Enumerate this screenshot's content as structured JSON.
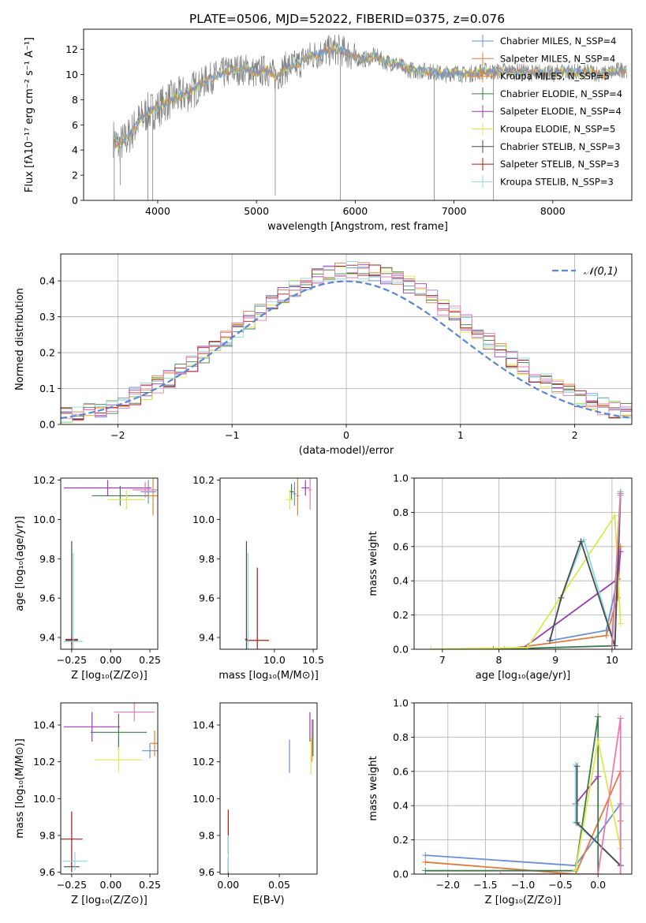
{
  "figure_title": "PLATE=0506, MJD=52022, FIBERID=0375, z=0.076",
  "colors": {
    "Chabrier MILES": "#6a8fd8",
    "Salpeter MILES": "#e0793a",
    "Kroupa MILES": "#e8852a",
    "Chabrier ELODIE": "#3e7a4a",
    "Salpeter ELODIE": "#9a3cb0",
    "Kroupa ELODIE": "#dde84a",
    "Chabrier STELIB": "#4a4a4a",
    "Salpeter STELIB": "#b01818",
    "Kroupa STELIB": "#8ad8e0",
    "data": "#808080",
    "pink": "#e87ab0"
  },
  "chart_data": [
    {
      "type": "line",
      "id": "spectrum",
      "xlabel": "wavelength [Angstrom, rest frame]",
      "ylabel": "Flux [fλ10⁻¹⁷ erg cm⁻² s⁻¹ A⁻¹]",
      "xlim": [
        3250,
        8800
      ],
      "ylim": [
        0,
        13.6
      ],
      "xticks": [
        4000,
        5000,
        6000,
        7000,
        8000
      ],
      "yticks": [
        0,
        2,
        4,
        6,
        8,
        10,
        12
      ],
      "legend_position": "top-right",
      "legend": [
        "Chabrier MILES, N_SSP=4",
        "Salpeter MILES, N_SSP=4",
        "Kroupa MILES, N_SSP=5",
        "Chabrier ELODIE, N_SSP=4",
        "Salpeter ELODIE, N_SSP=4",
        "Kroupa ELODIE, N_SSP=5",
        "Chabrier STELIB, N_SSP=3",
        "Salpeter STELIB, N_SSP=3",
        "Kroupa STELIB, N_SSP=3"
      ],
      "continuum_anchors": [
        [
          3550,
          5.0
        ],
        [
          3600,
          4.3
        ],
        [
          3700,
          5.0
        ],
        [
          3800,
          6.2
        ],
        [
          3900,
          7.0
        ],
        [
          4000,
          7.3
        ],
        [
          4100,
          7.9
        ],
        [
          4200,
          8.2
        ],
        [
          4300,
          8.5
        ],
        [
          4400,
          9.0
        ],
        [
          4500,
          9.6
        ],
        [
          4600,
          9.9
        ],
        [
          4700,
          10.2
        ],
        [
          4800,
          10.4
        ],
        [
          4900,
          10.4
        ],
        [
          5000,
          10.1
        ],
        [
          5100,
          10.4
        ],
        [
          5200,
          9.8
        ],
        [
          5300,
          10.6
        ],
        [
          5400,
          10.7
        ],
        [
          5500,
          11.3
        ],
        [
          5600,
          11.6
        ],
        [
          5700,
          11.8
        ],
        [
          5800,
          12.0
        ],
        [
          5900,
          11.8
        ],
        [
          6000,
          11.3
        ],
        [
          6100,
          11.2
        ],
        [
          6200,
          11.5
        ],
        [
          6300,
          11.0
        ],
        [
          6400,
          10.9
        ],
        [
          6500,
          10.5
        ],
        [
          6600,
          10.3
        ],
        [
          6700,
          10.3
        ],
        [
          6800,
          10.2
        ],
        [
          6900,
          10.0
        ],
        [
          7000,
          10.2
        ],
        [
          7100,
          10.0
        ],
        [
          7200,
          10.1
        ],
        [
          7300,
          10.3
        ],
        [
          7400,
          10.2
        ],
        [
          7500,
          10.3
        ],
        [
          7600,
          10.2
        ],
        [
          7700,
          10.2
        ],
        [
          7800,
          10.1
        ],
        [
          7900,
          10.2
        ],
        [
          8000,
          10.0
        ],
        [
          8100,
          10.3
        ],
        [
          8200,
          10.2
        ],
        [
          8300,
          10.1
        ],
        [
          8400,
          10.2
        ],
        [
          8500,
          10.0
        ],
        [
          8600,
          10.2
        ],
        [
          8700,
          10.4
        ]
      ]
    },
    {
      "type": "histogram",
      "id": "residuals",
      "xlabel": "(data-model)/error",
      "ylabel": "Normed distribution",
      "xlim": [
        -2.5,
        2.5
      ],
      "ylim": [
        0,
        0.475
      ],
      "xticks": [
        -2,
        -1,
        0,
        1,
        2
      ],
      "yticks": [
        0.0,
        0.1,
        0.2,
        0.3,
        0.4
      ],
      "grid": true,
      "legend_position": "top-right",
      "reference_curve": {
        "label": "𝒩(0,1)",
        "mean": 0,
        "sigma": 1,
        "color": "#5a86d8"
      },
      "bin_width": 0.1
    },
    {
      "type": "errorbar",
      "id": "age_vs_Z",
      "xlabel": "Z [log₁₀(Z/Z⊙)]",
      "ylabel": "age  [log₁₀(age/yr)]",
      "xlim": [
        -0.32,
        0.3
      ],
      "ylim": [
        9.34,
        10.21
      ],
      "xticks": [
        -0.25,
        0.0,
        0.25
      ],
      "yticks": [
        9.4,
        9.6,
        9.8,
        10.0,
        10.2
      ],
      "points": [
        {
          "model": "Chabrier MILES",
          "x": 0.24,
          "y": 10.14,
          "xerr": 0.05,
          "yerr": 0.06
        },
        {
          "model": "Kroupa MILES",
          "x": 0.27,
          "y": 10.12,
          "xerr": 0.04,
          "yerr": 0.1
        },
        {
          "model": "Chabrier ELODIE",
          "x": 0.06,
          "y": 10.12,
          "xerr": 0.18,
          "yerr": 0.05
        },
        {
          "model": "Salpeter ELODIE",
          "x": -0.02,
          "y": 10.16,
          "xerr": 0.28,
          "yerr": 0.04
        },
        {
          "model": "Kroupa ELODIE",
          "x": 0.1,
          "y": 10.1,
          "xerr": 0.12,
          "yerr": 0.05
        },
        {
          "model": "Chabrier STELIB",
          "x": -0.25,
          "y": 9.39,
          "xerr": 0.04,
          "yerr": 0.5
        },
        {
          "model": "Salpeter STELIB",
          "x": -0.25,
          "y": 9.385,
          "xerr": 0.04,
          "yerr": 0.02
        },
        {
          "model": "Kroupa STELIB",
          "x": -0.24,
          "y": 9.38,
          "xerr": 0.06,
          "yerr": 0.45
        },
        {
          "model": "pink",
          "x": 0.22,
          "y": 10.15,
          "xerr": 0.08,
          "yerr": 0.04
        }
      ]
    },
    {
      "type": "errorbar",
      "id": "age_vs_mass",
      "xlabel": "mass [log₁₀(M/M⊙)]",
      "ylabel": "",
      "xlim": [
        9.3,
        10.55
      ],
      "ylim": [
        9.34,
        10.21
      ],
      "xticks": [
        10.0,
        10.5
      ],
      "yticks": [
        9.4,
        9.6,
        9.8,
        10.0,
        10.2
      ],
      "points": [
        {
          "model": "Chabrier MILES",
          "x": 10.26,
          "y": 10.13,
          "xerr": 0.02,
          "yerr": 0.06
        },
        {
          "model": "Kroupa MILES",
          "x": 10.3,
          "y": 10.12,
          "xerr": 0.02,
          "yerr": 0.1
        },
        {
          "model": "Chabrier ELODIE",
          "x": 10.22,
          "y": 10.14,
          "xerr": 0.03,
          "yerr": 0.04
        },
        {
          "model": "Salpeter ELODIE",
          "x": 10.4,
          "y": 10.16,
          "xerr": 0.05,
          "yerr": 0.04
        },
        {
          "model": "Kroupa ELODIE",
          "x": 10.2,
          "y": 10.1,
          "xerr": 0.05,
          "yerr": 0.05
        },
        {
          "model": "Chabrier STELIB",
          "x": 9.64,
          "y": 9.39,
          "xerr": 0.02,
          "yerr": 0.5
        },
        {
          "model": "Salpeter STELIB",
          "x": 9.78,
          "y": 9.385,
          "xerr": 0.15,
          "yerr": 0.37
        },
        {
          "model": "Kroupa STELIB",
          "x": 9.66,
          "y": 9.38,
          "xerr": 0.02,
          "yerr": 0.45
        },
        {
          "model": "pink",
          "x": 10.46,
          "y": 10.15,
          "xerr": 0.02,
          "yerr": 0.1
        }
      ]
    },
    {
      "type": "line",
      "id": "massweight_vs_age",
      "xlabel": "age  [log₁₀(age/yr)]",
      "ylabel": "mass weight",
      "xlim": [
        6.5,
        10.35
      ],
      "ylim": [
        0,
        1.0
      ],
      "xticks": [
        7,
        8,
        9,
        10
      ],
      "yticks": [
        0.0,
        0.2,
        0.4,
        0.6,
        0.8,
        1.0
      ],
      "grid": true,
      "series": [
        {
          "model": "Chabrier MILES",
          "x": [
            8.9,
            9.9,
            10.1,
            10.15
          ],
          "y": [
            0.05,
            0.11,
            0.41,
            0.9
          ]
        },
        {
          "model": "Salpeter MILES",
          "x": [
            8.1,
            9.9,
            10.1,
            10.15
          ],
          "y": [
            0.0,
            0.08,
            0.3,
            0.6
          ]
        },
        {
          "model": "Chabrier ELODIE",
          "x": [
            7.9,
            10.0,
            10.15
          ],
          "y": [
            0.0,
            0.02,
            0.92
          ]
        },
        {
          "model": "Salpeter ELODIE",
          "x": [
            8.4,
            10.1,
            10.15
          ],
          "y": [
            0.0,
            0.41,
            0.57
          ]
        },
        {
          "model": "Kroupa ELODIE",
          "x": [
            6.8,
            8.5,
            10.05,
            10.15
          ],
          "y": [
            0.0,
            0.01,
            0.78,
            0.15
          ]
        },
        {
          "model": "Kroupa STELIB",
          "x": [
            8.9,
            9.1,
            9.5,
            10.05,
            10.15
          ],
          "y": [
            0.05,
            0.3,
            0.64,
            0.02,
            0.92
          ]
        },
        {
          "model": "Chabrier STELIB",
          "x": [
            8.9,
            9.1,
            9.45,
            10.05,
            10.15
          ],
          "y": [
            0.05,
            0.3,
            0.63,
            0.02,
            0.91
          ]
        },
        {
          "model": "pink",
          "x": [
            10.0,
            10.15
          ],
          "y": [
            0.0,
            0.91
          ]
        }
      ]
    },
    {
      "type": "errorbar",
      "id": "mass_vs_Z",
      "xlabel": "Z [log₁₀(Z/Z⊙)]",
      "ylabel": "mass [log₁₀(M/M⊙)]",
      "xlim": [
        -0.32,
        0.3
      ],
      "ylim": [
        9.59,
        10.52
      ],
      "xticks": [
        -0.25,
        0.0,
        0.25
      ],
      "yticks": [
        9.6,
        9.8,
        10.0,
        10.2,
        10.4
      ],
      "points": [
        {
          "model": "Chabrier MILES",
          "x": 0.25,
          "y": 10.26,
          "xerr": 0.05,
          "yerr": 0.04
        },
        {
          "model": "Kroupa MILES",
          "x": 0.28,
          "y": 10.3,
          "xerr": 0.03,
          "yerr": 0.07
        },
        {
          "model": "Chabrier ELODIE",
          "x": 0.05,
          "y": 10.36,
          "xerr": 0.18,
          "yerr": 0.1
        },
        {
          "model": "Salpeter ELODIE",
          "x": -0.12,
          "y": 10.39,
          "xerr": 0.18,
          "yerr": 0.08
        },
        {
          "model": "Kroupa ELODIE",
          "x": 0.05,
          "y": 10.21,
          "xerr": 0.15,
          "yerr": 0.07
        },
        {
          "model": "Chabrier STELIB",
          "x": -0.25,
          "y": 9.63,
          "xerr": 0.05,
          "yerr": 0.03
        },
        {
          "model": "Salpeter STELIB",
          "x": -0.25,
          "y": 9.78,
          "xerr": 0.07,
          "yerr": 0.15
        },
        {
          "model": "Kroupa STELIB",
          "x": -0.23,
          "y": 9.66,
          "xerr": 0.08,
          "yerr": 0.05
        },
        {
          "model": "pink",
          "x": 0.15,
          "y": 10.47,
          "xerr": 0.13,
          "yerr": 0.05
        }
      ]
    },
    {
      "type": "errorbar",
      "id": "mass_vs_EBV",
      "xlabel": "E(B-V)",
      "ylabel": "",
      "xlim": [
        -0.008,
        0.087
      ],
      "ylim": [
        9.59,
        10.52
      ],
      "xticks": [
        0.0,
        0.05
      ],
      "yticks": [
        9.6,
        9.8,
        10.0,
        10.2,
        10.4
      ],
      "points": [
        {
          "model": "Chabrier MILES",
          "x": 0.06,
          "y": 10.23,
          "xerr": 0,
          "yerr": 0.09
        },
        {
          "model": "Kroupa MILES",
          "x": 0.082,
          "y": 10.3,
          "xerr": 0,
          "yerr": 0.1
        },
        {
          "model": "Chabrier ELODIE",
          "x": 0.083,
          "y": 10.33,
          "xerr": 0,
          "yerr": 0.1
        },
        {
          "model": "Salpeter ELODIE",
          "x": 0.08,
          "y": 10.39,
          "xerr": 0,
          "yerr": 0.08
        },
        {
          "model": "Kroupa ELODIE",
          "x": 0.081,
          "y": 10.23,
          "xerr": 0,
          "yerr": 0.1
        },
        {
          "model": "Chabrier STELIB",
          "x": 0.0,
          "y": 9.63,
          "xerr": 0,
          "yerr": 0.05
        },
        {
          "model": "Salpeter STELIB",
          "x": 0.0,
          "y": 9.82,
          "xerr": 0,
          "yerr": 0.12
        },
        {
          "model": "Kroupa STELIB",
          "x": 0.0,
          "y": 9.7,
          "xerr": 0,
          "yerr": 0.1
        },
        {
          "model": "pink",
          "x": 0.082,
          "y": 10.38,
          "xerr": 0,
          "yerr": 0.05
        }
      ]
    },
    {
      "type": "line",
      "id": "massweight_vs_Z",
      "xlabel": "Z [log₁₀(Z/Z⊙)]",
      "ylabel": "mass weight",
      "xlim": [
        -2.45,
        0.45
      ],
      "ylim": [
        0,
        1.0
      ],
      "xticks": [
        -2.0,
        -1.5,
        -1.0,
        -0.5,
        0.0
      ],
      "yticks": [
        0.0,
        0.2,
        0.4,
        0.6,
        0.8,
        1.0
      ],
      "grid": true,
      "series": [
        {
          "model": "Chabrier MILES",
          "x": [
            -2.3,
            -0.3,
            0.3,
            0.3
          ],
          "y": [
            0.11,
            0.05,
            0.41,
            0.05
          ]
        },
        {
          "model": "Salpeter MILES",
          "x": [
            -2.3,
            -0.3,
            0.3,
            0.3
          ],
          "y": [
            0.07,
            0.0,
            0.6,
            0.31
          ]
        },
        {
          "model": "Chabrier ELODIE",
          "x": [
            -2.3,
            -0.3,
            0.0,
            0.0
          ],
          "y": [
            0.02,
            0.02,
            0.92,
            0.0
          ]
        },
        {
          "model": "Salpeter ELODIE",
          "x": [
            -0.3,
            0.0
          ],
          "y": [
            0.41,
            0.57
          ]
        },
        {
          "model": "Kroupa ELODIE",
          "x": [
            -0.3,
            0.0,
            0.3
          ],
          "y": [
            0.02,
            0.78,
            0.15
          ]
        },
        {
          "model": "Kroupa STELIB",
          "x": [
            -0.3,
            -0.3,
            0.3
          ],
          "y": [
            0.64,
            0.3,
            0.05
          ]
        },
        {
          "model": "Chabrier STELIB",
          "x": [
            -0.28,
            -0.28,
            0.3
          ],
          "y": [
            0.63,
            0.3,
            0.05
          ]
        },
        {
          "model": "pink",
          "x": [
            -1.3,
            0.0,
            0.3,
            0.3
          ],
          "y": [
            0.0,
            0.0,
            0.91,
            0.0
          ]
        }
      ]
    }
  ]
}
